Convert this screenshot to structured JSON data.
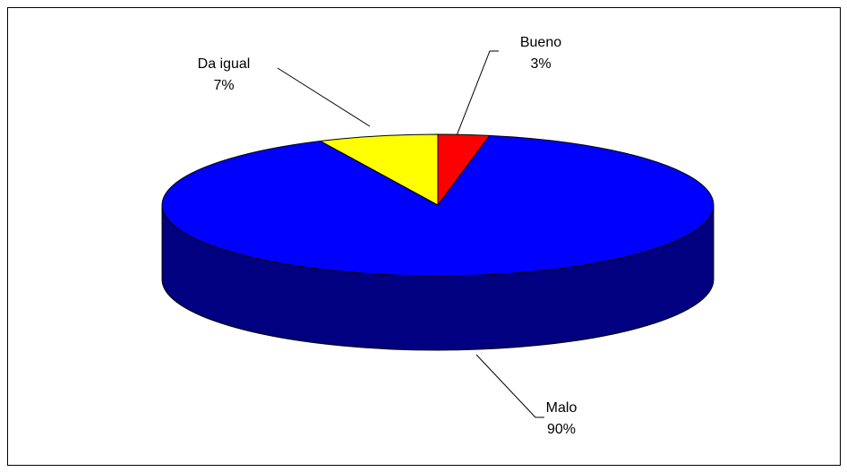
{
  "chart_data": {
    "type": "pie",
    "style": "3d",
    "categories": [
      "Bueno",
      "Malo",
      "Da igual"
    ],
    "values": [
      3,
      90,
      7
    ],
    "labels": [
      {
        "name": "Bueno",
        "percent": "3%"
      },
      {
        "name": "Malo",
        "percent": "90%"
      },
      {
        "name": "Da igual",
        "percent": "7%"
      }
    ],
    "colors": {
      "Bueno": "#ff0000",
      "Malo": "#0000ff",
      "Da igual": "#ffff00",
      "side_dark": "#000080",
      "outline": "#000000"
    },
    "legend": "none",
    "title": ""
  }
}
